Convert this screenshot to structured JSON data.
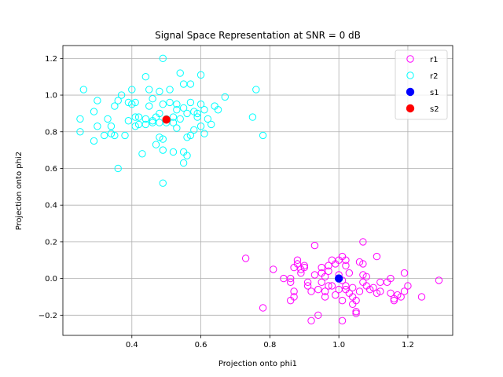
{
  "chart_data": {
    "type": "scatter",
    "title": "Signal Space Representation at SNR = 0 dB",
    "xlabel": "Projection onto phi1",
    "ylabel": "Projection onto phi2",
    "xlim": [
      0.2,
      1.33
    ],
    "ylim": [
      -0.31,
      1.27
    ],
    "xticks": [
      0.4,
      0.6,
      0.8,
      1.0,
      1.2
    ],
    "xtick_labels": [
      "0.4",
      "0.6",
      "0.8",
      "1.0",
      "1.2"
    ],
    "yticks": [
      -0.2,
      0.0,
      0.2,
      0.4,
      0.6,
      0.8,
      1.0,
      1.2
    ],
    "ytick_labels": [
      "−0.2",
      "0.0",
      "0.2",
      "0.4",
      "0.6",
      "0.8",
      "1.0",
      "1.2"
    ],
    "grid": true,
    "legend_position": "top-right",
    "series": [
      {
        "name": "r1",
        "color": "#ff00ff",
        "marker": "hollow-circle",
        "points": [
          [
            0.73,
            0.11
          ],
          [
            0.78,
            -0.16
          ],
          [
            0.81,
            0.05
          ],
          [
            0.84,
            0.0
          ],
          [
            0.86,
            -0.12
          ],
          [
            0.86,
            -0.02
          ],
          [
            0.86,
            0.0
          ],
          [
            0.87,
            0.06
          ],
          [
            0.87,
            -0.07
          ],
          [
            0.87,
            -0.1
          ],
          [
            0.88,
            0.1
          ],
          [
            0.88,
            0.08
          ],
          [
            0.89,
            0.05
          ],
          [
            0.89,
            0.03
          ],
          [
            0.9,
            0.07
          ],
          [
            0.91,
            -0.02
          ],
          [
            0.91,
            -0.04
          ],
          [
            0.92,
            -0.07
          ],
          [
            0.92,
            -0.23
          ],
          [
            0.93,
            0.18
          ],
          [
            0.93,
            0.02
          ],
          [
            0.94,
            -0.06
          ],
          [
            0.94,
            -0.2
          ],
          [
            0.95,
            0.03
          ],
          [
            0.95,
            0.06
          ],
          [
            0.95,
            -0.02
          ],
          [
            0.96,
            0.01
          ],
          [
            0.96,
            -0.07
          ],
          [
            0.96,
            -0.1
          ],
          [
            0.97,
            0.04
          ],
          [
            0.97,
            0.07
          ],
          [
            0.98,
            0.1
          ],
          [
            0.98,
            -0.04
          ],
          [
            0.99,
            0.08
          ],
          [
            0.99,
            -0.09
          ],
          [
            1.0,
            0.1
          ],
          [
            1.0,
            0.02
          ],
          [
            1.0,
            -0.06
          ],
          [
            1.01,
            0.12
          ],
          [
            1.01,
            -0.01
          ],
          [
            1.01,
            -0.12
          ],
          [
            1.01,
            -0.23
          ],
          [
            1.02,
            0.1
          ],
          [
            1.02,
            0.07
          ],
          [
            1.02,
            -0.04
          ],
          [
            1.03,
            -0.08
          ],
          [
            1.03,
            0.03
          ],
          [
            1.04,
            -0.1
          ],
          [
            1.04,
            -0.14
          ],
          [
            1.04,
            -0.05
          ],
          [
            1.05,
            -0.18
          ],
          [
            1.05,
            -0.12
          ],
          [
            1.06,
            0.09
          ],
          [
            1.06,
            -0.07
          ],
          [
            1.07,
            0.08
          ],
          [
            1.07,
            0.02
          ],
          [
            1.07,
            -0.02
          ],
          [
            1.07,
            0.2
          ],
          [
            1.08,
            0.01
          ],
          [
            1.08,
            -0.04
          ],
          [
            1.09,
            -0.06
          ],
          [
            1.1,
            -0.05
          ],
          [
            1.11,
            0.12
          ],
          [
            1.11,
            -0.08
          ],
          [
            1.12,
            -0.02
          ],
          [
            1.14,
            -0.02
          ],
          [
            1.15,
            0.0
          ],
          [
            1.15,
            -0.08
          ],
          [
            1.16,
            -0.11
          ],
          [
            1.16,
            -0.12
          ],
          [
            1.17,
            -0.09
          ],
          [
            1.18,
            -0.1
          ],
          [
            1.19,
            -0.07
          ],
          [
            1.19,
            0.03
          ],
          [
            1.2,
            -0.04
          ],
          [
            1.24,
            -0.1
          ],
          [
            1.29,
            -0.01
          ],
          [
            1.02,
            -0.06
          ],
          [
            0.97,
            -0.04
          ],
          [
            0.9,
            0.06
          ],
          [
            1.05,
            -0.19
          ],
          [
            1.12,
            -0.07
          ]
        ]
      },
      {
        "name": "r2",
        "color": "#00ffff",
        "marker": "hollow-circle",
        "points": [
          [
            0.25,
            0.87
          ],
          [
            0.25,
            0.8
          ],
          [
            0.26,
            1.03
          ],
          [
            0.29,
            0.91
          ],
          [
            0.29,
            0.75
          ],
          [
            0.3,
            0.97
          ],
          [
            0.3,
            0.83
          ],
          [
            0.32,
            0.78
          ],
          [
            0.33,
            0.87
          ],
          [
            0.34,
            0.83
          ],
          [
            0.34,
            0.79
          ],
          [
            0.35,
            0.94
          ],
          [
            0.35,
            0.78
          ],
          [
            0.36,
            0.97
          ],
          [
            0.36,
            0.6
          ],
          [
            0.37,
            1.0
          ],
          [
            0.38,
            0.78
          ],
          [
            0.39,
            0.86
          ],
          [
            0.39,
            0.96
          ],
          [
            0.4,
            1.03
          ],
          [
            0.4,
            0.95
          ],
          [
            0.41,
            0.88
          ],
          [
            0.41,
            0.83
          ],
          [
            0.41,
            0.96
          ],
          [
            0.42,
            0.88
          ],
          [
            0.43,
            0.68
          ],
          [
            0.44,
            1.1
          ],
          [
            0.44,
            0.87
          ],
          [
            0.44,
            0.84
          ],
          [
            0.45,
            0.94
          ],
          [
            0.45,
            1.03
          ],
          [
            0.46,
            0.98
          ],
          [
            0.46,
            0.86
          ],
          [
            0.47,
            0.73
          ],
          [
            0.47,
            0.88
          ],
          [
            0.48,
            0.9
          ],
          [
            0.48,
            0.85
          ],
          [
            0.48,
            0.77
          ],
          [
            0.48,
            1.02
          ],
          [
            0.49,
            1.2
          ],
          [
            0.49,
            0.95
          ],
          [
            0.49,
            0.7
          ],
          [
            0.49,
            0.76
          ],
          [
            0.49,
            0.52
          ],
          [
            0.5,
            0.87
          ],
          [
            0.5,
            0.85
          ],
          [
            0.51,
            1.03
          ],
          [
            0.51,
            0.96
          ],
          [
            0.52,
            0.88
          ],
          [
            0.52,
            0.69
          ],
          [
            0.53,
            0.95
          ],
          [
            0.53,
            0.82
          ],
          [
            0.54,
            1.12
          ],
          [
            0.54,
            0.87
          ],
          [
            0.55,
            1.06
          ],
          [
            0.55,
            0.93
          ],
          [
            0.55,
            0.69
          ],
          [
            0.55,
            0.63
          ],
          [
            0.56,
            0.67
          ],
          [
            0.56,
            0.9
          ],
          [
            0.56,
            0.77
          ],
          [
            0.57,
            0.78
          ],
          [
            0.57,
            0.96
          ],
          [
            0.57,
            1.06
          ],
          [
            0.58,
            0.81
          ],
          [
            0.58,
            0.91
          ],
          [
            0.59,
            0.9
          ],
          [
            0.59,
            0.88
          ],
          [
            0.6,
            0.95
          ],
          [
            0.6,
            0.83
          ],
          [
            0.6,
            1.11
          ],
          [
            0.61,
            0.92
          ],
          [
            0.61,
            0.79
          ],
          [
            0.62,
            0.87
          ],
          [
            0.63,
            0.84
          ],
          [
            0.64,
            0.94
          ],
          [
            0.65,
            0.92
          ],
          [
            0.67,
            0.99
          ],
          [
            0.75,
            0.88
          ],
          [
            0.76,
            1.03
          ],
          [
            0.78,
            0.78
          ],
          [
            0.52,
            0.85
          ],
          [
            0.46,
            0.85
          ],
          [
            0.53,
            0.92
          ],
          [
            0.42,
            0.84
          ]
        ]
      },
      {
        "name": "s1",
        "color": "#0000ff",
        "marker": "filled-circle",
        "points": [
          [
            1.0,
            0.0
          ]
        ]
      },
      {
        "name": "s2",
        "color": "#ff0000",
        "marker": "filled-circle",
        "points": [
          [
            0.5,
            0.866
          ]
        ]
      }
    ]
  }
}
